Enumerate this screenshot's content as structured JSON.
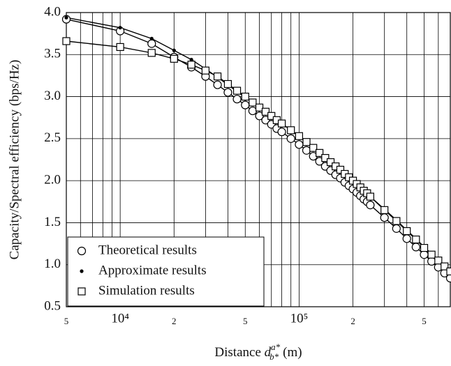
{
  "chart_data": {
    "type": "line",
    "ylabel": "Capacity/Spectral efficiency (bps/Hz)",
    "xlabel": {
      "text": "Distance",
      "var": "d",
      "sup": "a*",
      "sub": "b*",
      "unit": "(m)"
    },
    "log_x": true,
    "grid": true,
    "legend": "lower left",
    "xlim": [
      5000,
      700000
    ],
    "ylim": [
      0.5,
      4.0
    ],
    "xticks": [
      {
        "value": 5000,
        "label": "5"
      },
      {
        "value": 10000,
        "label": "10⁴"
      },
      {
        "value": 20000,
        "label": "2"
      },
      {
        "value": 50000,
        "label": "5"
      },
      {
        "value": 100000,
        "label": "10⁵"
      },
      {
        "value": 200000,
        "label": "2"
      },
      {
        "value": 500000,
        "label": "5"
      }
    ],
    "xgrid_minor": [
      6000,
      7000,
      8000,
      9000,
      30000,
      40000,
      60000,
      70000,
      80000,
      90000,
      300000,
      400000,
      600000
    ],
    "yticks": [
      0.5,
      {
        "value": 1,
        "label": "1.0"
      },
      1.5,
      {
        "value": 2,
        "label": "2.0"
      },
      2.5,
      {
        "value": 3,
        "label": "3.0"
      },
      3.5,
      {
        "value": 4,
        "label": "4.0"
      }
    ],
    "x": [
      5000,
      10000,
      15000,
      20000,
      25000,
      30000,
      35000,
      40000,
      45000,
      50000,
      55000,
      60000,
      65000,
      70000,
      75000,
      80000,
      90000,
      100000,
      110000,
      120000,
      130000,
      140000,
      150000,
      160000,
      170000,
      180000,
      190000,
      200000,
      210000,
      220000,
      230000,
      240000,
      250000,
      300000,
      350000,
      400000,
      450000,
      500000,
      550000,
      600000,
      650000,
      700000
    ],
    "series": [
      {
        "name": "Theoretical results",
        "color": "#000000",
        "marker": "circle",
        "values": [
          3.92,
          3.78,
          3.63,
          3.47,
          3.35,
          3.24,
          3.14,
          3.05,
          2.97,
          2.9,
          2.83,
          2.77,
          2.72,
          2.67,
          2.62,
          2.58,
          2.5,
          2.43,
          2.36,
          2.29,
          2.23,
          2.17,
          2.12,
          2.07,
          2.03,
          1.98,
          1.94,
          1.9,
          1.86,
          1.82,
          1.78,
          1.75,
          1.71,
          1.56,
          1.43,
          1.31,
          1.21,
          1.12,
          1.04,
          0.97,
          0.9,
          0.84
        ]
      },
      {
        "name": "Approximate results",
        "color": "#000000",
        "marker": "dot",
        "values": [
          3.94,
          3.82,
          3.69,
          3.55,
          3.44,
          3.33,
          3.23,
          3.14,
          3.06,
          2.99,
          2.93,
          2.87,
          2.82,
          2.77,
          2.72,
          2.68,
          2.6,
          2.53,
          2.46,
          2.39,
          2.33,
          2.27,
          2.22,
          2.17,
          2.13,
          2.08,
          2.04,
          2.0,
          1.96,
          1.92,
          1.88,
          1.85,
          1.81,
          1.66,
          1.53,
          1.41,
          1.31,
          1.21,
          1.13,
          1.06,
          0.99,
          0.92
        ]
      },
      {
        "name": "Simulation results",
        "color": "#000000",
        "marker": "square",
        "values": [
          3.66,
          3.59,
          3.52,
          3.45,
          3.38,
          3.31,
          3.24,
          3.15,
          3.07,
          3.0,
          2.93,
          2.87,
          2.82,
          2.77,
          2.72,
          2.68,
          2.6,
          2.53,
          2.46,
          2.39,
          2.33,
          2.27,
          2.22,
          2.17,
          2.13,
          2.08,
          2.04,
          2.0,
          1.96,
          1.92,
          1.88,
          1.85,
          1.81,
          1.65,
          1.52,
          1.4,
          1.3,
          1.2,
          1.12,
          1.05,
          0.98,
          0.92
        ]
      }
    ]
  }
}
